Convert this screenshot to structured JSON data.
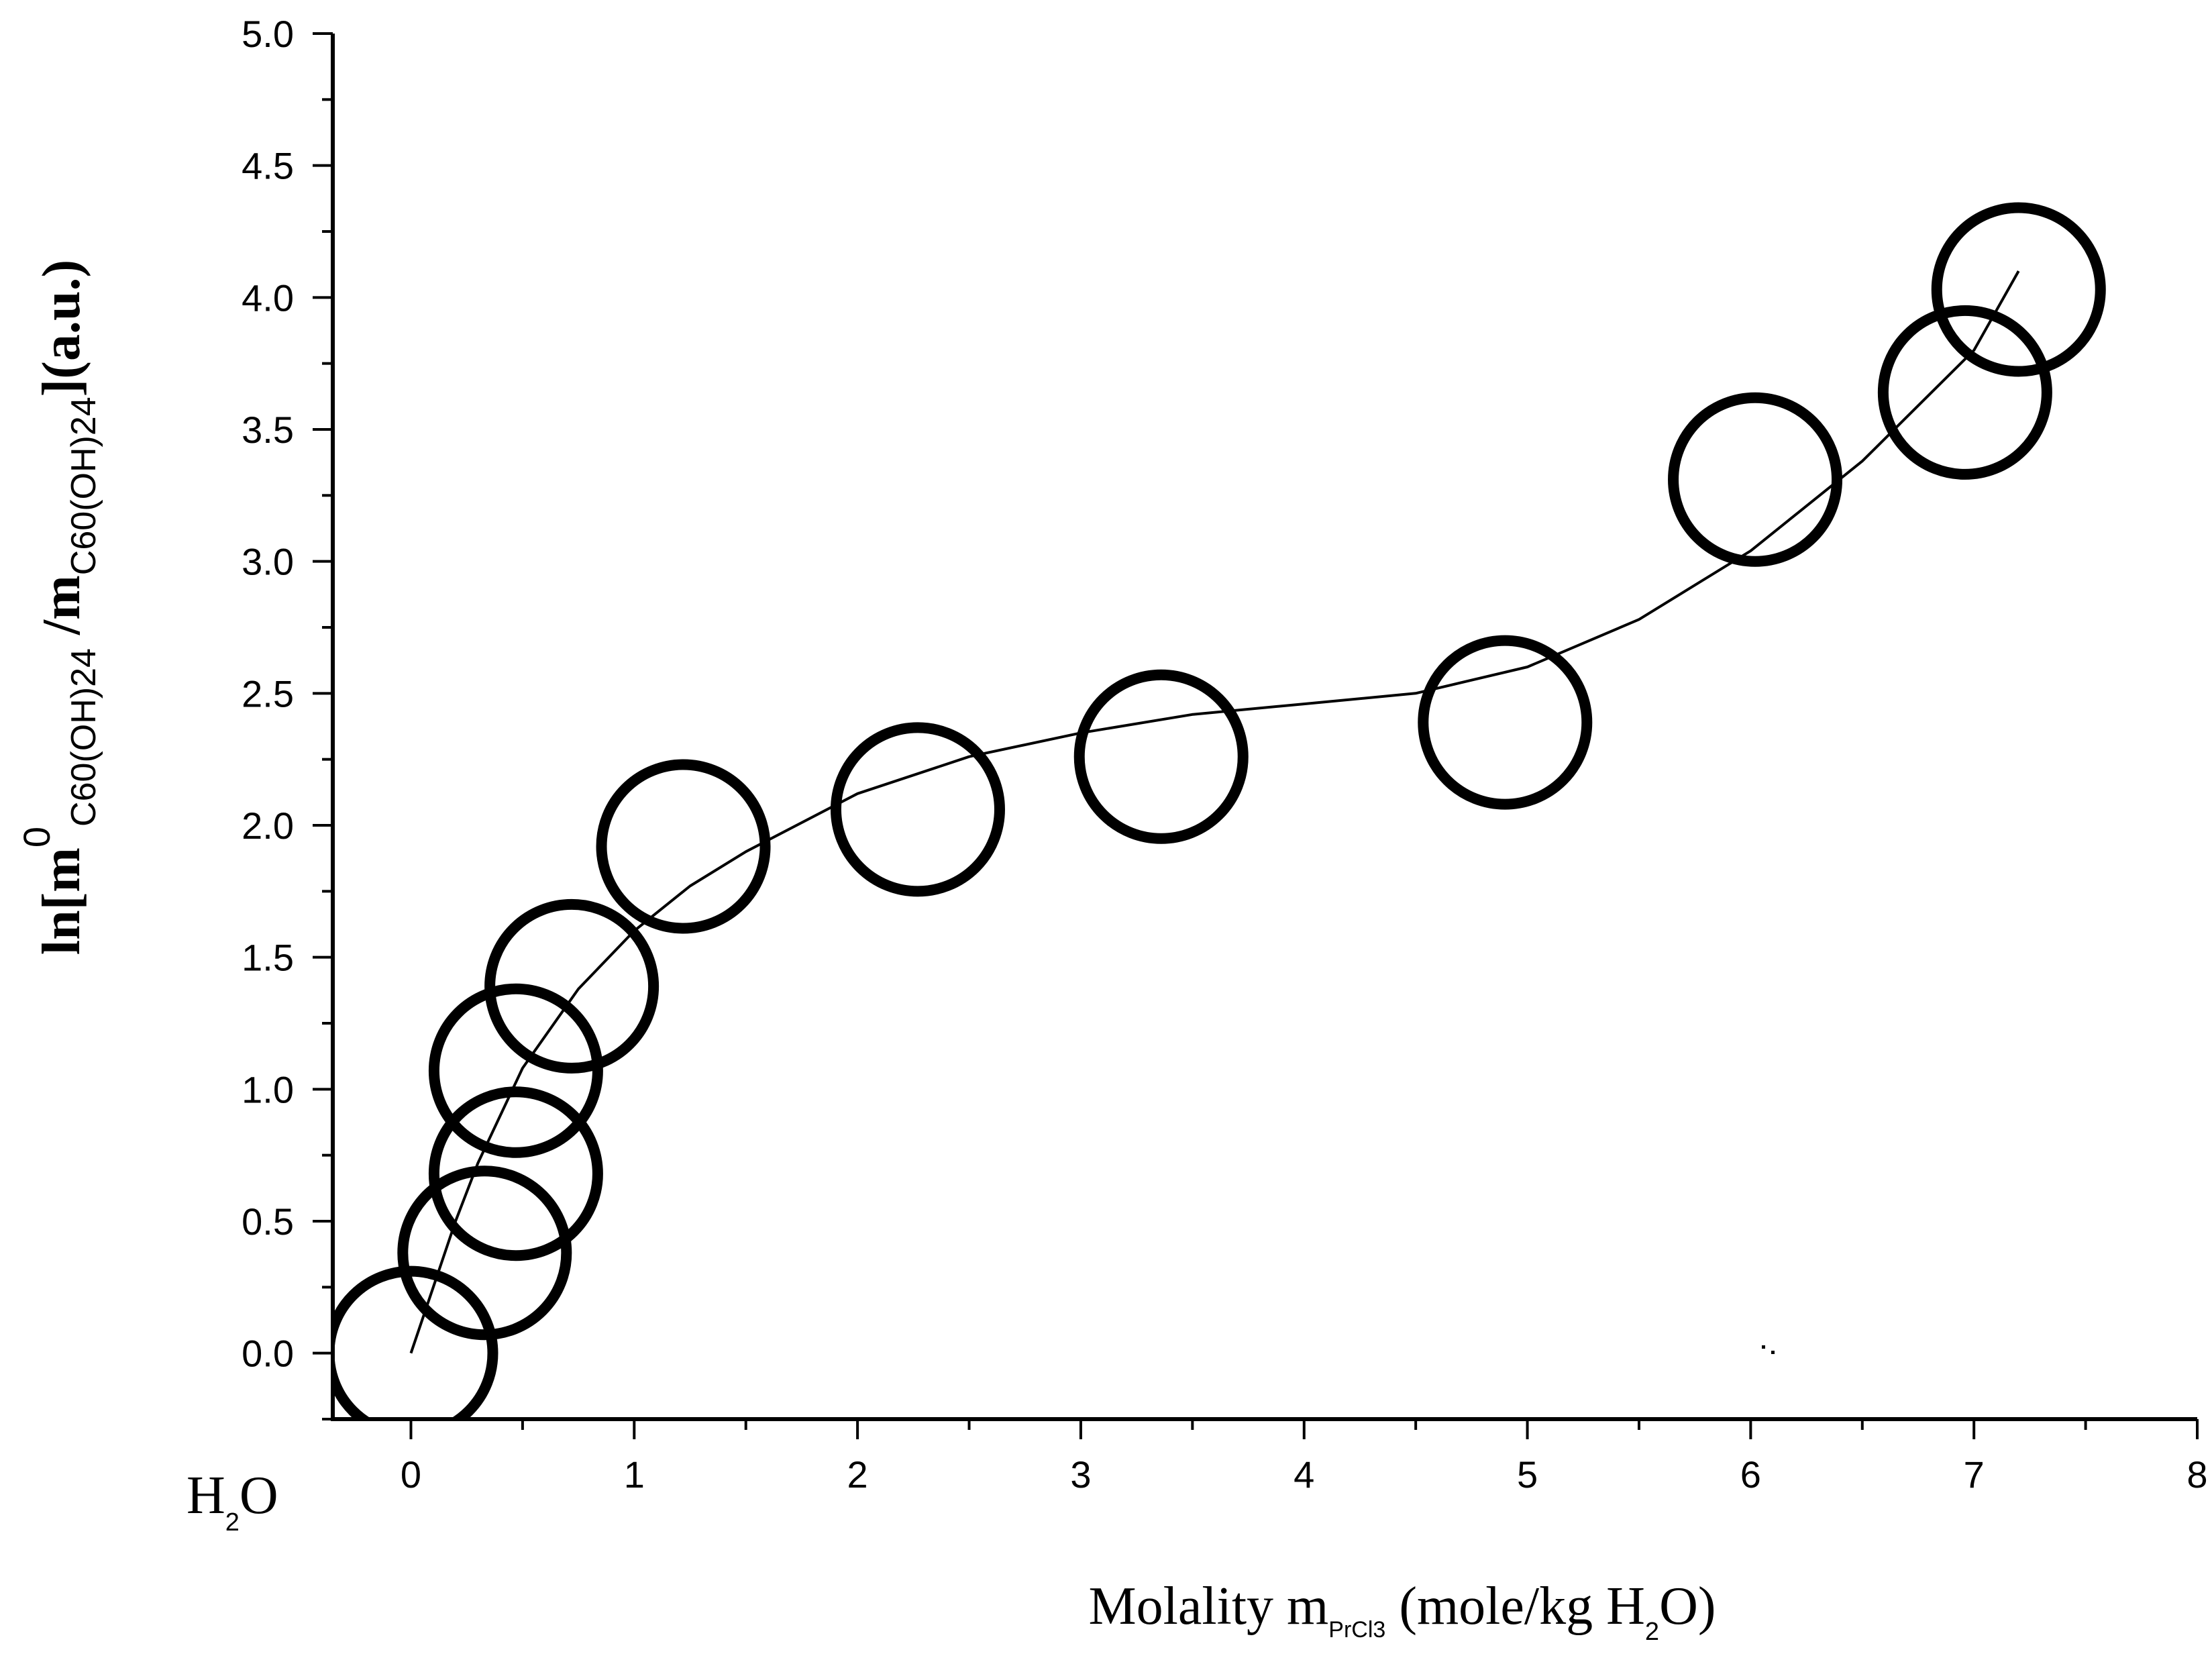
{
  "chart_data": {
    "type": "scatter",
    "title": "",
    "xlim": [
      -0.35,
      8
    ],
    "ylim": [
      -0.25,
      5.0
    ],
    "grid": false,
    "legend": "none",
    "x_ticks": [
      0,
      1,
      2,
      3,
      4,
      5,
      6,
      7,
      8
    ],
    "x_tick_labels": [
      "0",
      "1",
      "2",
      "3",
      "4",
      "5",
      "6",
      "7",
      "8"
    ],
    "y_ticks": [
      0.0,
      0.5,
      1.0,
      1.5,
      2.0,
      2.5,
      3.0,
      3.5,
      4.0,
      4.5,
      5.0
    ],
    "y_tick_labels": [
      "0.0",
      "0.5",
      "1.0",
      "1.5",
      "2.0",
      "2.5",
      "3.0",
      "3.5",
      "4.0",
      "4.5",
      "5.0"
    ],
    "x_extra_label": {
      "main": "H",
      "sub": "2",
      "tail": "O",
      "at": "-0.35"
    },
    "xlabel": {
      "pre": "Molality m",
      "sub": "PrCl3",
      "mid": " (mole/kg H",
      "sub2": "2",
      "post": "O)"
    },
    "ylabel": {
      "p1": "ln[m",
      "sup": "0",
      "sub1": "C60(OH)24",
      "p2": " /m",
      "sub2": "C60(OH)24",
      "p3": "](a.u.)"
    },
    "series": [
      {
        "marker": "open-circle",
        "color": "#000000",
        "points": [
          {
            "x": 0.0,
            "y": 0.0
          },
          {
            "x": 0.33,
            "y": 0.38
          },
          {
            "x": 0.47,
            "y": 0.68
          },
          {
            "x": 0.47,
            "y": 1.07
          },
          {
            "x": 0.72,
            "y": 1.39
          },
          {
            "x": 1.22,
            "y": 1.92
          },
          {
            "x": 2.27,
            "y": 2.06
          },
          {
            "x": 3.36,
            "y": 2.26
          },
          {
            "x": 4.9,
            "y": 2.39
          },
          {
            "x": 6.02,
            "y": 3.31
          },
          {
            "x": 6.96,
            "y": 3.64
          },
          {
            "x": 7.2,
            "y": 4.03
          }
        ]
      }
    ],
    "fit_curve": {
      "color": "#000000",
      "points": [
        [
          0.0,
          0.0
        ],
        [
          0.1,
          0.25
        ],
        [
          0.2,
          0.5
        ],
        [
          0.3,
          0.72
        ],
        [
          0.5,
          1.08
        ],
        [
          0.75,
          1.38
        ],
        [
          1.0,
          1.6
        ],
        [
          1.25,
          1.77
        ],
        [
          1.5,
          1.9
        ],
        [
          2.0,
          2.12
        ],
        [
          2.5,
          2.26
        ],
        [
          3.0,
          2.35
        ],
        [
          3.5,
          2.42
        ],
        [
          4.0,
          2.46
        ],
        [
          4.5,
          2.5
        ],
        [
          5.0,
          2.6
        ],
        [
          5.5,
          2.78
        ],
        [
          6.0,
          3.04
        ],
        [
          6.5,
          3.38
        ],
        [
          7.0,
          3.8
        ],
        [
          7.2,
          4.1
        ]
      ]
    }
  }
}
